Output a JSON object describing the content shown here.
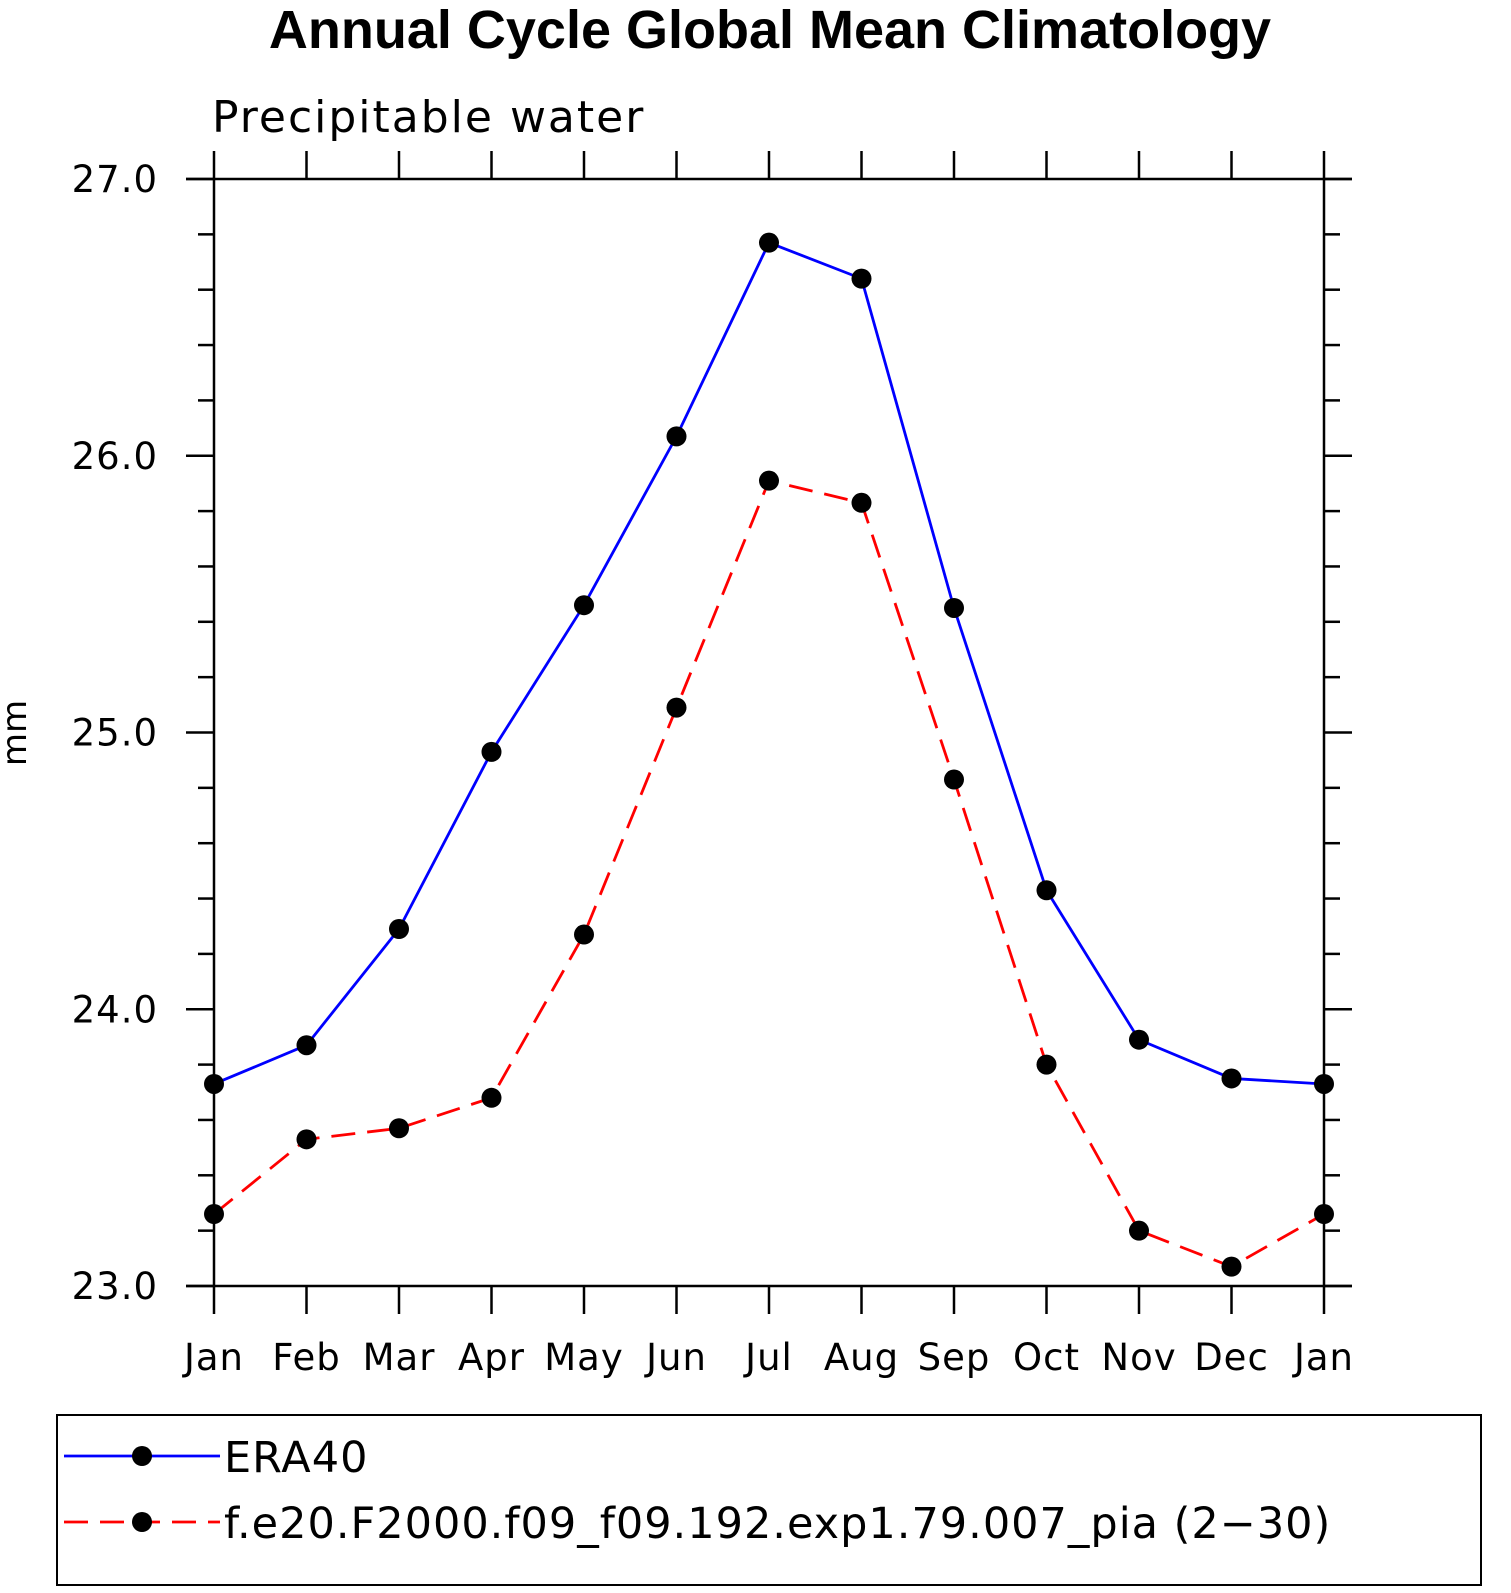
{
  "chart_data": {
    "type": "line",
    "title": "Annual Cycle Global Mean Climatology",
    "subtitle": "Precipitable water",
    "xlabel": "",
    "ylabel": "mm",
    "categories": [
      "Jan",
      "Feb",
      "Mar",
      "Apr",
      "May",
      "Jun",
      "Jul",
      "Aug",
      "Sep",
      "Oct",
      "Nov",
      "Dec",
      "Jan"
    ],
    "ylim": [
      23.0,
      27.0
    ],
    "yticks": [
      23.0,
      24.0,
      25.0,
      26.0,
      27.0
    ],
    "ytick_labels": [
      "23.0",
      "24.0",
      "25.0",
      "26.0",
      "27.0"
    ],
    "y_minor_step": 0.2,
    "legend_position": "bottom",
    "series": [
      {
        "name": "ERA40",
        "color": "#0000ff",
        "dash": "solid",
        "marker": "circle",
        "values": [
          23.73,
          23.87,
          24.29,
          24.93,
          25.46,
          26.07,
          26.77,
          26.64,
          25.45,
          24.43,
          23.89,
          23.75,
          23.73
        ]
      },
      {
        "name": "f.e20.F2000.f09_f09.192.exp1.79.007_pia (2−30)",
        "color": "#ff0000",
        "dash": "dashed",
        "marker": "circle",
        "values": [
          23.26,
          23.53,
          23.57,
          23.68,
          24.27,
          25.09,
          25.91,
          25.83,
          24.83,
          23.8,
          23.2,
          23.07,
          23.26
        ]
      }
    ]
  }
}
